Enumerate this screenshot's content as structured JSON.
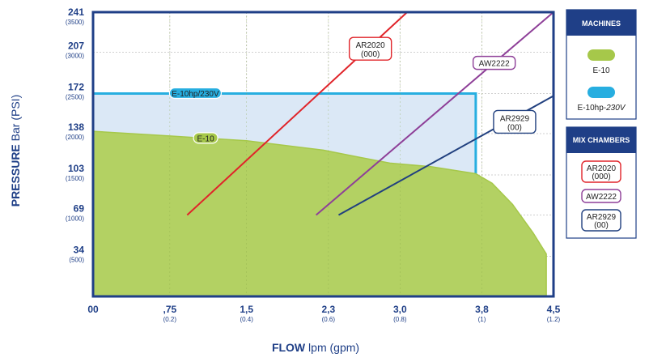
{
  "chart_data": {
    "type": "area",
    "xlabel_bold": "FLOW",
    "xlabel_rest": " lpm (gpm)",
    "ylabel_bold": "PRESSURE",
    "ylabel_rest": " Bar (PSI)",
    "xlim": [
      0,
      4.5
    ],
    "ylim": [
      0,
      241
    ],
    "grid": true,
    "x_ticks": [
      {
        "value": 0,
        "label": "00",
        "sub": ""
      },
      {
        "value": 0.75,
        "label": ",75",
        "sub": "(0.2)"
      },
      {
        "value": 1.5,
        "label": "1,5",
        "sub": "(0.4)"
      },
      {
        "value": 2.3,
        "label": "2,3",
        "sub": "(0.6)"
      },
      {
        "value": 3.0,
        "label": "3,0",
        "sub": "(0.8)"
      },
      {
        "value": 3.8,
        "label": "3,8",
        "sub": "(1)"
      },
      {
        "value": 4.5,
        "label": "4,5",
        "sub": "(1.2)"
      }
    ],
    "y_ticks": [
      {
        "value": 34,
        "label": "34",
        "sub": "(500)"
      },
      {
        "value": 69,
        "label": "69",
        "sub": "(1000)"
      },
      {
        "value": 103,
        "label": "103",
        "sub": "(1500)"
      },
      {
        "value": 138,
        "label": "138",
        "sub": "(2000)"
      },
      {
        "value": 172,
        "label": "172",
        "sub": "(2500)"
      },
      {
        "value": 207,
        "label": "207",
        "sub": "(3000)"
      },
      {
        "value": 241,
        "label": "241",
        "sub": "(3500)"
      }
    ],
    "machines": [
      {
        "name": "E-10hp/230V",
        "legend_main": "E-10hp-",
        "legend_italic": "230V",
        "color": "#27aee0",
        "fill": "#dbe8f6",
        "points": [
          [
            0,
            172
          ],
          [
            3.74,
            172
          ],
          [
            3.74,
            0
          ]
        ],
        "label_at": [
          1.0,
          172
        ]
      },
      {
        "name": "E-10",
        "legend_main": "E-10",
        "legend_italic": "",
        "color": "#a6c84a",
        "fill": "#b3d163",
        "points": [
          [
            0,
            140
          ],
          [
            0.75,
            136
          ],
          [
            1.5,
            132
          ],
          [
            2.25,
            124
          ],
          [
            2.6,
            118
          ],
          [
            2.9,
            113
          ],
          [
            3.3,
            110
          ],
          [
            3.74,
            104
          ],
          [
            3.9,
            96
          ],
          [
            4.1,
            78
          ],
          [
            4.3,
            54
          ],
          [
            4.43,
            36
          ],
          [
            4.43,
            0
          ]
        ],
        "label_at": [
          1.1,
          134
        ]
      }
    ],
    "mix_chambers": [
      {
        "name": "AR2020",
        "code": "(000)",
        "color": "#e0242a",
        "line": [
          [
            0.92,
            69
          ],
          [
            3.07,
            241
          ]
        ],
        "box_at": [
          2.71,
          210
        ]
      },
      {
        "name": "AW2222",
        "code": "",
        "color": "#8e3f98",
        "line": [
          [
            2.18,
            69
          ],
          [
            4.5,
            241
          ]
        ],
        "box_at": [
          3.92,
          198
        ]
      },
      {
        "name": "AR2929",
        "code": "(00)",
        "color": "#21407f",
        "line": [
          [
            2.4,
            69
          ],
          [
            4.5,
            170
          ]
        ],
        "box_at": [
          4.12,
          148
        ]
      }
    ]
  },
  "legend": {
    "machines_title": "MACHINES",
    "mix_title": "MIX CHAMBERS"
  }
}
